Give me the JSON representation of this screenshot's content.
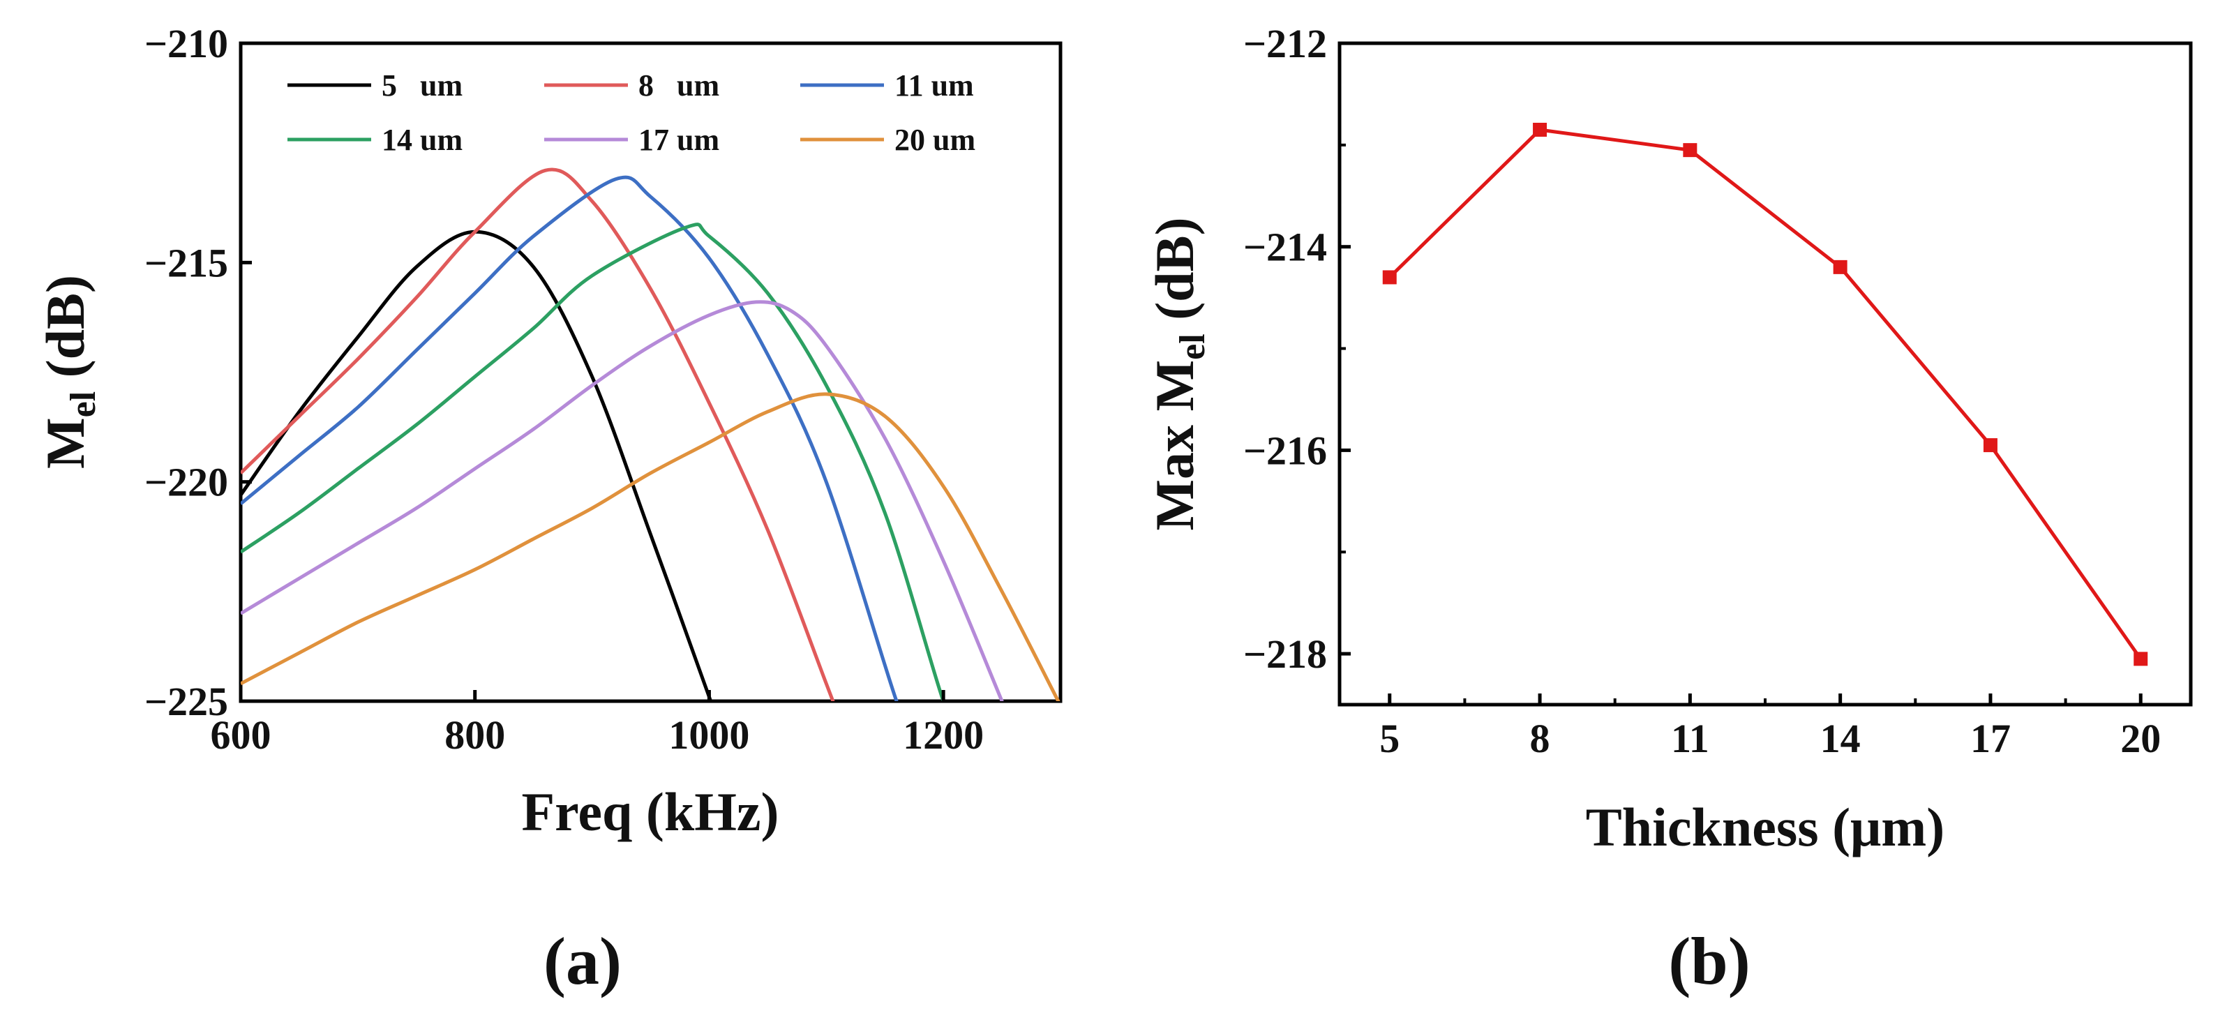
{
  "chart_data": [
    {
      "panel_label": "(a)",
      "type": "line",
      "xlabel": "Freq (kHz)",
      "ylabel": {
        "main": "M",
        "sub": "el",
        "unit": " (dB)"
      },
      "xlim": [
        600,
        1300
      ],
      "ylim": [
        -225,
        -210
      ],
      "xticks": [
        600,
        800,
        1000,
        1200
      ],
      "yticks": [
        -225,
        -220,
        -215,
        -210
      ],
      "grid": false,
      "legend_position": "top",
      "series": [
        {
          "name": "5   um",
          "color": "#000000",
          "x": [
            600,
            650,
            700,
            750,
            800,
            850,
            900,
            950,
            1000,
            1020
          ],
          "y": [
            -220.3,
            -218.4,
            -216.7,
            -215.1,
            -214.3,
            -215.1,
            -217.6,
            -221.2,
            -224.9,
            -226.5
          ]
        },
        {
          "name": "8   um",
          "color": "#e05a5a",
          "x": [
            600,
            650,
            700,
            750,
            800,
            860,
            900,
            950,
            1000,
            1050,
            1100,
            1120
          ],
          "y": [
            -219.8,
            -218.5,
            -217.2,
            -215.8,
            -214.3,
            -212.9,
            -213.6,
            -215.6,
            -218.2,
            -221.1,
            -224.6,
            -226.0
          ]
        },
        {
          "name": "11 um",
          "color": "#3d6fc4",
          "x": [
            600,
            650,
            700,
            750,
            800,
            850,
            920,
            950,
            1000,
            1050,
            1100,
            1160,
            1180
          ],
          "y": [
            -220.5,
            -219.4,
            -218.3,
            -217.0,
            -215.7,
            -214.4,
            -213.1,
            -213.5,
            -214.9,
            -217.1,
            -220.0,
            -225.0,
            -226.2
          ]
        },
        {
          "name": "14 um",
          "color": "#2ca062",
          "x": [
            600,
            650,
            700,
            750,
            800,
            850,
            900,
            980,
            1000,
            1050,
            1100,
            1150,
            1200,
            1220
          ],
          "y": [
            -221.6,
            -220.7,
            -219.7,
            -218.7,
            -217.6,
            -216.5,
            -215.3,
            -214.2,
            -214.4,
            -215.7,
            -217.8,
            -220.7,
            -225.0,
            -226.2
          ]
        },
        {
          "name": "17 um",
          "color": "#b58ad8",
          "x": [
            600,
            650,
            700,
            750,
            800,
            850,
            900,
            950,
            1000,
            1040,
            1070,
            1100,
            1150,
            1200,
            1250,
            1270
          ],
          "y": [
            -223.0,
            -222.2,
            -221.4,
            -220.6,
            -219.7,
            -218.8,
            -217.8,
            -216.9,
            -216.2,
            -215.9,
            -216.1,
            -216.9,
            -219.0,
            -221.8,
            -225.0,
            -226.3
          ]
        },
        {
          "name": "20 um",
          "color": "#e0913c",
          "x": [
            600,
            650,
            700,
            750,
            800,
            850,
            900,
            950,
            1000,
            1050,
            1100,
            1150,
            1200,
            1250,
            1300
          ],
          "y": [
            -224.6,
            -223.9,
            -223.2,
            -222.6,
            -222.0,
            -221.3,
            -220.6,
            -219.8,
            -219.1,
            -218.4,
            -218.0,
            -218.5,
            -220.1,
            -222.5,
            -225.1
          ]
        }
      ]
    },
    {
      "panel_label": "(b)",
      "type": "line",
      "xlabel": "Thickness (μm)",
      "ylabel": {
        "main": "Max  M",
        "sub": "el",
        "unit": " (dB)"
      },
      "xlim": [
        4,
        21
      ],
      "ylim": [
        -218.5,
        -212
      ],
      "xticks": [
        5,
        8,
        11,
        14,
        17,
        20
      ],
      "yticks": [
        -218,
        -216,
        -214,
        -212
      ],
      "grid": false,
      "series": [
        {
          "name": "",
          "color": "#e01818",
          "marker": "square",
          "x": [
            5,
            8,
            11,
            14,
            17,
            20
          ],
          "y": [
            -214.3,
            -212.85,
            -213.05,
            -214.2,
            -215.95,
            -218.05
          ]
        }
      ]
    }
  ]
}
